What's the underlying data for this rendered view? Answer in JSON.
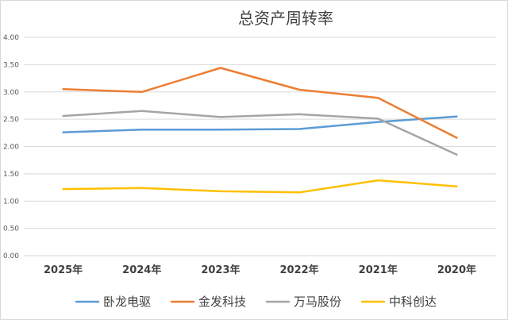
{
  "chart_data": {
    "type": "line",
    "title": "总资产周转率",
    "xlabel": "",
    "ylabel": "",
    "categories": [
      "2025年",
      "2024年",
      "2023年",
      "2022年",
      "2021年",
      "2020年"
    ],
    "ylim": [
      0,
      4
    ],
    "yticks": [
      "0.00",
      "0.50",
      "1.00",
      "1.50",
      "2.00",
      "2.50",
      "3.00",
      "3.50",
      "4.00"
    ],
    "grid": true,
    "legend_position": "bottom",
    "series": [
      {
        "name": "卧龙电驱",
        "color": "#5b9bd5",
        "values": [
          2.26,
          2.31,
          2.31,
          2.32,
          2.45,
          2.55
        ]
      },
      {
        "name": "金发科技",
        "color": "#ed7d31",
        "values": [
          3.05,
          3.0,
          3.44,
          3.04,
          2.89,
          2.16
        ]
      },
      {
        "name": "万马股份",
        "color": "#a5a5a5",
        "values": [
          2.56,
          2.65,
          2.54,
          2.59,
          2.51,
          1.85
        ]
      },
      {
        "name": "中科创达",
        "color": "#ffc000",
        "values": [
          1.22,
          1.24,
          1.18,
          1.16,
          1.38,
          1.27
        ]
      }
    ]
  }
}
